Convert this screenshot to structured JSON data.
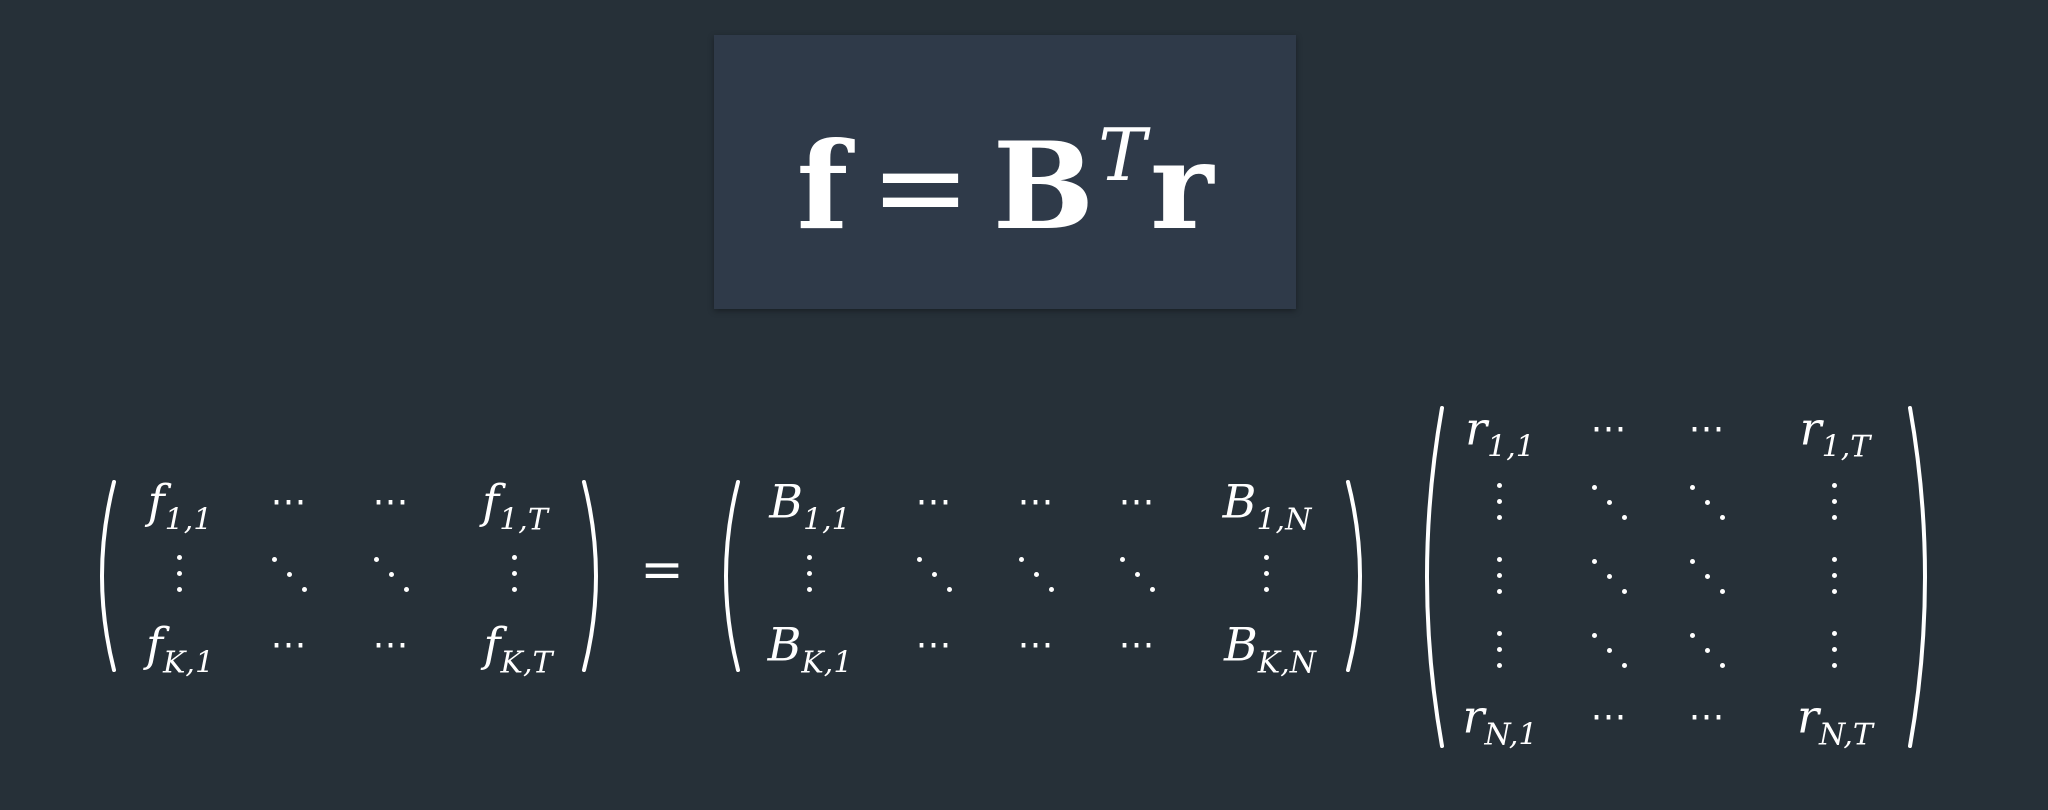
{
  "title_formula": {
    "lhs": "f",
    "equals": "=",
    "matrix": "B",
    "superscript": "T",
    "rhs": "r"
  },
  "lhs_matrix": {
    "symbol": "f",
    "row1_first_sub": "1,1",
    "row1_last_sub": "1,T",
    "row3_first_sub": "K,1",
    "row3_last_sub": "K,T"
  },
  "equals": "=",
  "b_matrix": {
    "symbol": "B",
    "row1_first_sub": "1,1",
    "row1_last_sub": "1,N",
    "row3_first_sub": "K,1",
    "row3_last_sub": "K,N"
  },
  "r_matrix": {
    "symbol": "r",
    "row1_first_sub": "1,1",
    "row1_last_sub": "1,T",
    "row5_first_sub": "N,1",
    "row5_last_sub": "N,T"
  },
  "hdots": "⋯"
}
